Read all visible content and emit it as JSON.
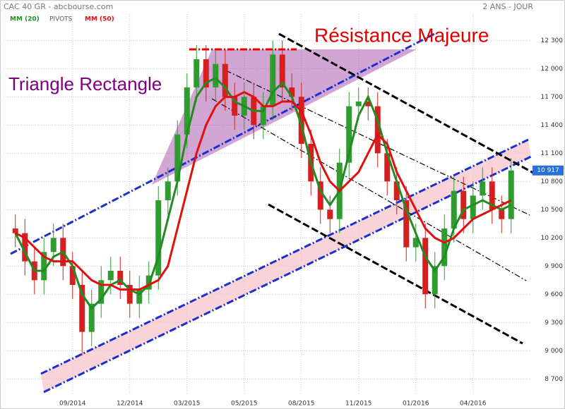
{
  "chart_data": {
    "type": "candlestick",
    "title": "CAC 40 GR - abcbourse.com",
    "period": "2 ANS - JOUR",
    "legend_items": [
      "MM (20)",
      "PIVOTS",
      "MM (50)"
    ],
    "annotations": [
      "Résistance Majeure",
      "Triangle Rectangle"
    ],
    "up_color": "#2e9c2e",
    "down_color": "#d42020",
    "categories": [
      null,
      null,
      null,
      null,
      null,
      null,
      "09/2014",
      null,
      null,
      null,
      null,
      null,
      "12/2014",
      null,
      null,
      null,
      null,
      null,
      "03/2015",
      null,
      null,
      null,
      null,
      null,
      "05/2015",
      null,
      null,
      null,
      null,
      null,
      "08/2015",
      null,
      null,
      null,
      null,
      null,
      "11/2015",
      null,
      null,
      null,
      null,
      null,
      "01/2016",
      null,
      null,
      null,
      null,
      null,
      "04/2016",
      null,
      null,
      null,
      null
    ],
    "open": [
      10300,
      10250,
      9950,
      9750,
      10050,
      10200,
      9900,
      9700,
      9200,
      9500,
      9750,
      9850,
      9700,
      9500,
      9650,
      9800,
      10600,
      10800,
      11300,
      11800,
      12100,
      11800,
      12050,
      11700,
      11500,
      11700,
      11400,
      11600,
      12150,
      11800,
      11700,
      11200,
      10800,
      10500,
      10400,
      11000,
      11600,
      11650,
      11600,
      11100,
      10800,
      10600,
      10100,
      10200,
      9600,
      9900,
      10300,
      10700,
      10400,
      10650,
      10800,
      10500,
      10400
    ],
    "high": [
      10450,
      10400,
      10100,
      10200,
      10350,
      10350,
      10050,
      9850,
      9650,
      9900,
      10000,
      10000,
      9850,
      9800,
      9950,
      10750,
      10950,
      11450,
      11950,
      12250,
      12250,
      12200,
      12200,
      11850,
      11850,
      11850,
      11750,
      12300,
      12300,
      11950,
      11850,
      11350,
      10950,
      10650,
      11150,
      11750,
      11800,
      11800,
      11750,
      11250,
      10950,
      10750,
      10350,
      10350,
      10050,
      10450,
      10850,
      10850,
      10800,
      10950,
      10950,
      10650,
      11050
    ],
    "low": [
      10100,
      9800,
      9600,
      9600,
      9900,
      9750,
      9550,
      8950,
      9050,
      9350,
      9600,
      9550,
      9350,
      9350,
      9500,
      9650,
      10450,
      10650,
      11150,
      11650,
      11650,
      11650,
      11550,
      11350,
      11350,
      11250,
      11250,
      11450,
      11650,
      11550,
      11050,
      10650,
      10350,
      10250,
      10250,
      10850,
      11450,
      11450,
      10950,
      10650,
      10450,
      9950,
      9950,
      9450,
      9450,
      9750,
      10150,
      10250,
      10250,
      10500,
      10350,
      10250,
      10250
    ],
    "close": [
      10250,
      9950,
      9750,
      10050,
      10200,
      9900,
      9700,
      9200,
      9500,
      9750,
      9850,
      9700,
      9500,
      9650,
      9800,
      10600,
      10800,
      11300,
      11800,
      12100,
      11800,
      12050,
      11700,
      11500,
      11700,
      11400,
      11600,
      12150,
      11800,
      11700,
      11200,
      10800,
      10500,
      10400,
      11000,
      11600,
      11650,
      11600,
      11100,
      10800,
      10600,
      10100,
      10200,
      9600,
      9900,
      10300,
      10700,
      10400,
      10650,
      10800,
      10500,
      10400,
      10917
    ],
    "series": [
      {
        "name": "MM (20)",
        "color": "#228b22",
        "values": [
          10250,
          10050,
          9850,
          9850,
          10000,
          10050,
          9900,
          9600,
          9450,
          9550,
          9700,
          9750,
          9650,
          9600,
          9700,
          10000,
          10400,
          10800,
          11300,
          11700,
          11850,
          11900,
          11800,
          11650,
          11600,
          11550,
          11550,
          11750,
          11850,
          11700,
          11400,
          11000,
          10700,
          10550,
          10700,
          11100,
          11500,
          11700,
          11450,
          11100,
          10800,
          10500,
          10250,
          10000,
          9850,
          10000,
          10300,
          10500,
          10550,
          10600,
          10550,
          10500,
          10550
        ]
      },
      {
        "name": "MM (50)",
        "color": "#e01010",
        "values": [
          10250,
          10200,
          10100,
          10000,
          9950,
          9950,
          9950,
          9850,
          9750,
          9700,
          9700,
          9650,
          9650,
          9650,
          9700,
          9750,
          9900,
          10300,
          10700,
          11100,
          11400,
          11600,
          11700,
          11700,
          11750,
          11700,
          11600,
          11600,
          11650,
          11650,
          11550,
          11300,
          11000,
          10800,
          10700,
          10800,
          10900,
          11100,
          11300,
          11200,
          10900,
          10700,
          10500,
          10300,
          10200,
          10150,
          10200,
          10300,
          10400,
          10450,
          10500,
          10550,
          10600
        ]
      }
    ],
    "last_price": {
      "value": 10917,
      "label": "10 917"
    },
    "ylim": [
      8530,
      12580
    ],
    "yticks": [
      {
        "value": 8700,
        "label": "8 700"
      },
      {
        "value": 9000,
        "label": "9 000"
      },
      {
        "value": 9300,
        "label": "9 300"
      },
      {
        "value": 9600,
        "label": "9 600"
      },
      {
        "value": 9900,
        "label": "9 900"
      },
      {
        "value": 10200,
        "label": "10 200"
      },
      {
        "value": 10500,
        "label": "10 500"
      },
      {
        "value": 10800,
        "label": "10 800"
      },
      {
        "value": 11100,
        "label": "11 100"
      },
      {
        "value": 11400,
        "label": "11 400"
      },
      {
        "value": 11700,
        "label": "11 700"
      },
      {
        "value": 12000,
        "label": "12 000"
      },
      {
        "value": 12300,
        "label": "12 300"
      }
    ],
    "grid": true
  }
}
